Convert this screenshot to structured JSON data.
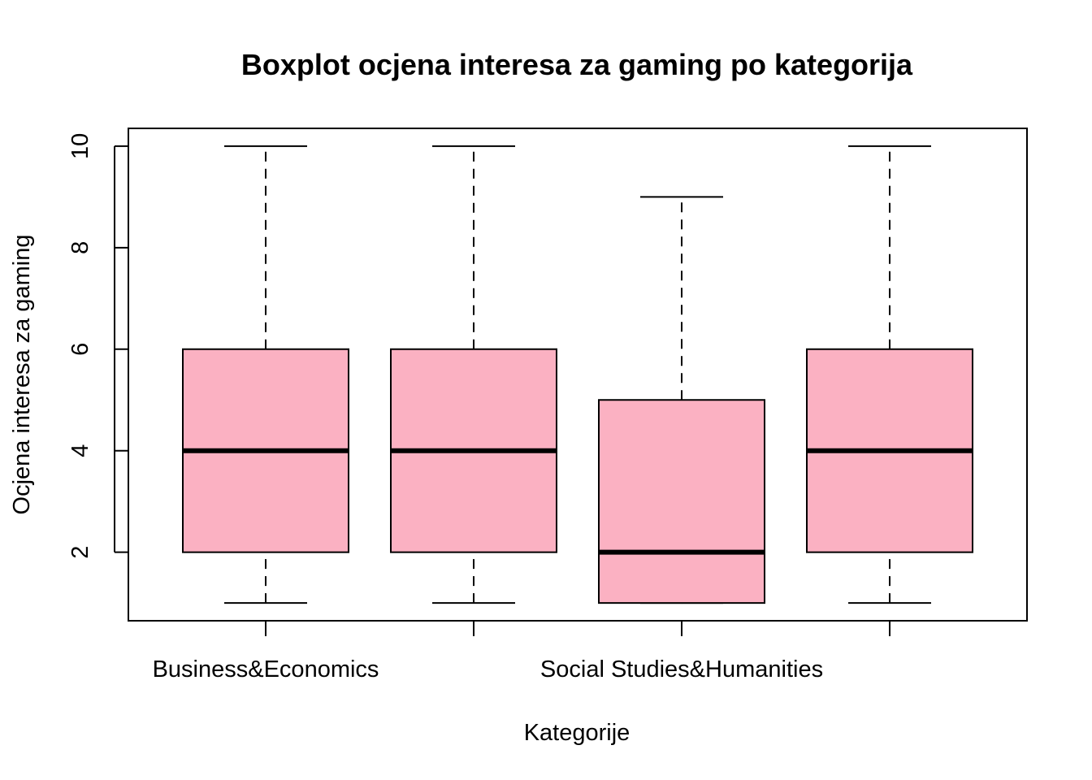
{
  "chart_data": {
    "type": "boxplot",
    "title": "Boxplot ocjena interesa za gaming po kategorija",
    "xlabel": "Kategorije",
    "ylabel": "Ocjena interesa za gaming",
    "ylim": [
      0.65,
      10.35
    ],
    "yticks": [
      2,
      4,
      6,
      8,
      10
    ],
    "xtick_labels": [
      "Business&Economics",
      "",
      "Social Studies&Humanities",
      ""
    ],
    "box_color": "#fbb1c2",
    "grid": false,
    "legend": "none",
    "series": [
      {
        "min": 1,
        "q1": 2,
        "median": 4,
        "q3": 6,
        "max": 10
      },
      {
        "min": 1,
        "q1": 2,
        "median": 4,
        "q3": 6,
        "max": 10
      },
      {
        "min": 1,
        "q1": 1,
        "median": 2,
        "q3": 5,
        "max": 9
      },
      {
        "min": 1,
        "q1": 2,
        "median": 4,
        "q3": 6,
        "max": 10
      }
    ]
  }
}
